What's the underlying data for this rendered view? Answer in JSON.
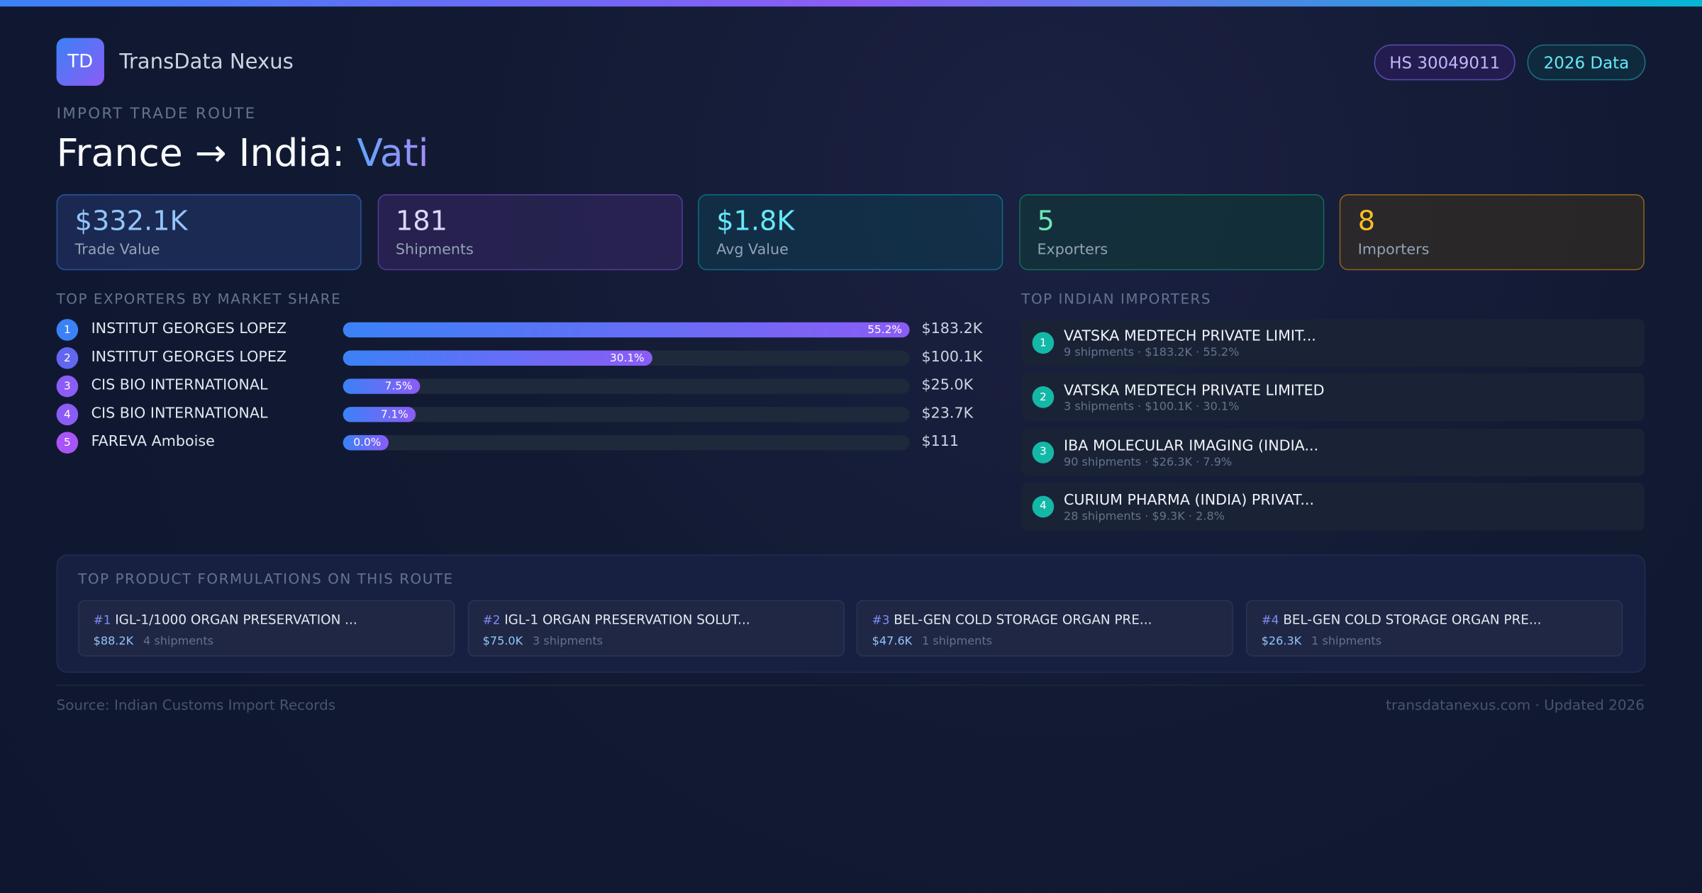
{
  "header": {
    "logo": "TD",
    "brand": "TransData Nexus",
    "badges": [
      "HS 30049011",
      "2026 Data"
    ],
    "eyebrow": "IMPORT TRADE ROUTE",
    "title_prefix": "France → India:",
    "title_highlight": "Vati"
  },
  "stats": [
    {
      "value": "$332.1K",
      "label": "Trade Value"
    },
    {
      "value": "181",
      "label": "Shipments"
    },
    {
      "value": "$1.8K",
      "label": "Avg Value"
    },
    {
      "value": "5",
      "label": "Exporters"
    },
    {
      "value": "8",
      "label": "Importers"
    }
  ],
  "exporters": {
    "heading": "TOP EXPORTERS BY MARKET SHARE",
    "items": [
      {
        "rank": 1,
        "name": "INSTITUT GEORGES LOPEZ",
        "share": 55.2,
        "share_label": "55.2%",
        "value": "$183.2K"
      },
      {
        "rank": 2,
        "name": "INSTITUT GEORGES LOPEZ",
        "share": 30.1,
        "share_label": "30.1%",
        "value": "$100.1K"
      },
      {
        "rank": 3,
        "name": "CIS BIO INTERNATIONAL",
        "share": 7.5,
        "share_label": "7.5%",
        "value": "$25.0K"
      },
      {
        "rank": 4,
        "name": "CIS BIO INTERNATIONAL",
        "share": 7.1,
        "share_label": "7.1%",
        "value": "$23.7K"
      },
      {
        "rank": 5,
        "name": "FAREVA Amboise",
        "share": 0.0,
        "share_label": "0.0%",
        "value": "$111"
      }
    ]
  },
  "importers": {
    "heading": "TOP INDIAN IMPORTERS",
    "items": [
      {
        "rank": 1,
        "name": "VATSKA MEDTECH PRIVATE LIMIT...",
        "detail": "9 shipments · $183.2K · 55.2%"
      },
      {
        "rank": 2,
        "name": "VATSKA MEDTECH PRIVATE LIMITED",
        "detail": "3 shipments · $100.1K · 30.1%"
      },
      {
        "rank": 3,
        "name": "IBA MOLECULAR IMAGING (INDIA...",
        "detail": "90 shipments · $26.3K · 7.9%"
      },
      {
        "rank": 4,
        "name": "CURIUM PHARMA (INDIA) PRIVAT...",
        "detail": "28 shipments · $9.3K · 2.8%"
      }
    ]
  },
  "products": {
    "heading": "TOP PRODUCT FORMULATIONS ON THIS ROUTE",
    "items": [
      {
        "rank": "#1",
        "name": "IGL-1/1000 ORGAN PRESERVATION ...",
        "value": "$88.2K",
        "shipments": "4 shipments"
      },
      {
        "rank": "#2",
        "name": "IGL-1 ORGAN PRESERVATION SOLUT...",
        "value": "$75.0K",
        "shipments": "3 shipments"
      },
      {
        "rank": "#3",
        "name": "BEL-GEN COLD STORAGE ORGAN PRE...",
        "value": "$47.6K",
        "shipments": "1 shipments"
      },
      {
        "rank": "#4",
        "name": "BEL-GEN COLD STORAGE ORGAN PRE...",
        "value": "$26.3K",
        "shipments": "1 shipments"
      }
    ]
  },
  "footer": {
    "source": "Source: Indian Customs Import Records",
    "site": "transdatanexus.com · Updated 2026"
  }
}
